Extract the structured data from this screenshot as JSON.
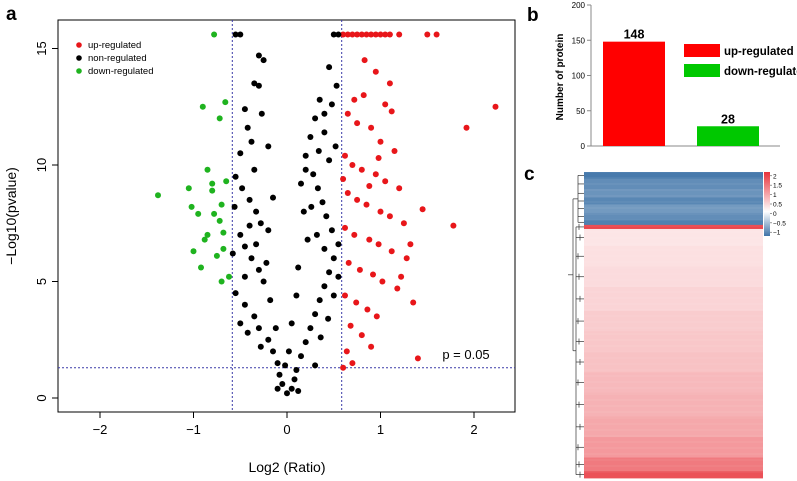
{
  "panels": {
    "a": {
      "letter": "a"
    },
    "b": {
      "letter": "b"
    },
    "c": {
      "letter": "c"
    }
  },
  "colors": {
    "up": "#e8161a",
    "non": "#000000",
    "down": "#1fb31f",
    "threshold_line": "#3b3ba8",
    "heat_high": "#e8323a",
    "heat_mid": "#ffffff",
    "heat_low": "#3f74a8"
  },
  "chart_data": [
    {
      "panel": "a",
      "type": "scatter",
      "xlabel": "Log2 (Ratio)",
      "ylabel": "−Log10(pvalue)",
      "xlim": [
        -2.4,
        2.4
      ],
      "ylim": [
        0,
        16
      ],
      "x_ticks": [
        -2,
        -1,
        0,
        1,
        2
      ],
      "y_ticks": [
        0,
        5,
        10,
        15
      ],
      "x_tick_labels": [
        "−2",
        "−1",
        "0",
        "1",
        "2"
      ],
      "y_tick_labels": [
        "0",
        "5",
        "10",
        "15"
      ],
      "legend": {
        "placement": "top-left",
        "entries": [
          {
            "label": "up-regulated",
            "color": "#e8161a"
          },
          {
            "label": "non-regulated",
            "color": "#000000"
          },
          {
            "label": "down-regulated",
            "color": "#1fb31f"
          }
        ]
      },
      "thresholds": {
        "x": [
          -0.585,
          0.585
        ],
        "y": 1.3
      },
      "annotation": "p = 0.05",
      "series": [
        {
          "name": "down-regulated",
          "color": "#1fb31f",
          "points": [
            [
              -1.38,
              8.7
            ],
            [
              -1.05,
              9.0
            ],
            [
              -1.02,
              8.2
            ],
            [
              -0.9,
              12.5
            ],
            [
              -0.85,
              9.8
            ],
            [
              -0.8,
              8.9
            ],
            [
              -0.78,
              7.9
            ],
            [
              -0.95,
              7.9
            ],
            [
              -0.72,
              7.6
            ],
            [
              -0.88,
              6.8
            ],
            [
              -0.75,
              6.1
            ],
            [
              -0.68,
              6.4
            ],
            [
              -0.92,
              5.6
            ],
            [
              -0.7,
              5.0
            ],
            [
              -0.65,
              9.3
            ],
            [
              -0.72,
              12.0
            ],
            [
              -0.78,
              15.6
            ],
            [
              -0.7,
              8.3
            ],
            [
              -0.85,
              7.0
            ],
            [
              -1.0,
              6.3
            ],
            [
              -0.62,
              5.2
            ],
            [
              -0.8,
              9.2
            ],
            [
              -0.68,
              7.1
            ],
            [
              -0.66,
              12.7
            ]
          ]
        },
        {
          "name": "up-regulated",
          "color": "#e8161a",
          "points": [
            [
              0.6,
              15.6
            ],
            [
              0.65,
              15.6
            ],
            [
              0.7,
              15.6
            ],
            [
              0.75,
              15.6
            ],
            [
              0.8,
              15.6
            ],
            [
              0.85,
              15.6
            ],
            [
              0.9,
              15.6
            ],
            [
              0.95,
              15.6
            ],
            [
              1.0,
              15.6
            ],
            [
              1.05,
              15.6
            ],
            [
              1.1,
              15.6
            ],
            [
              1.2,
              15.6
            ],
            [
              1.5,
              15.6
            ],
            [
              1.6,
              15.6
            ],
            [
              2.23,
              12.5
            ],
            [
              1.92,
              11.6
            ],
            [
              1.78,
              7.4
            ],
            [
              1.45,
              8.1
            ],
            [
              1.35,
              4.1
            ],
            [
              1.4,
              1.7
            ],
            [
              0.95,
              14.0
            ],
            [
              1.1,
              13.5
            ],
            [
              0.82,
              13.0
            ],
            [
              1.05,
              12.6
            ],
            [
              0.65,
              12.2
            ],
            [
              0.75,
              11.8
            ],
            [
              0.9,
              11.6
            ],
            [
              1.0,
              11.0
            ],
            [
              1.15,
              10.6
            ],
            [
              0.62,
              10.4
            ],
            [
              0.7,
              10.0
            ],
            [
              0.8,
              9.8
            ],
            [
              0.95,
              9.6
            ],
            [
              1.05,
              9.3
            ],
            [
              1.2,
              9.0
            ],
            [
              0.65,
              8.8
            ],
            [
              0.75,
              8.5
            ],
            [
              0.85,
              8.3
            ],
            [
              1.0,
              8.0
            ],
            [
              1.1,
              7.8
            ],
            [
              1.25,
              7.5
            ],
            [
              0.62,
              7.3
            ],
            [
              0.72,
              7.0
            ],
            [
              0.88,
              6.8
            ],
            [
              0.98,
              6.6
            ],
            [
              1.12,
              6.3
            ],
            [
              1.28,
              6.0
            ],
            [
              0.66,
              5.8
            ],
            [
              0.78,
              5.5
            ],
            [
              0.92,
              5.3
            ],
            [
              1.02,
              5.0
            ],
            [
              1.18,
              4.7
            ],
            [
              0.62,
              4.4
            ],
            [
              0.74,
              4.1
            ],
            [
              0.86,
              3.8
            ],
            [
              0.96,
              3.5
            ],
            [
              0.68,
              3.1
            ],
            [
              0.8,
              2.7
            ],
            [
              0.9,
              2.2
            ],
            [
              0.64,
              2.0
            ],
            [
              0.7,
              1.5
            ],
            [
              0.6,
              1.3
            ],
            [
              0.83,
              14.5
            ],
            [
              1.12,
              12.3
            ],
            [
              0.98,
              10.3
            ],
            [
              0.88,
              9.1
            ],
            [
              1.32,
              6.6
            ],
            [
              1.22,
              5.2
            ],
            [
              0.72,
              12.8
            ],
            [
              0.6,
              9.4
            ]
          ]
        },
        {
          "name": "non-regulated",
          "color": "#000000",
          "points": [
            [
              -0.55,
              15.6
            ],
            [
              -0.5,
              15.6
            ],
            [
              0.5,
              15.6
            ],
            [
              0.55,
              15.6
            ],
            [
              -0.3,
              14.7
            ],
            [
              -0.25,
              14.5
            ],
            [
              -0.35,
              13.5
            ],
            [
              -0.3,
              13.4
            ],
            [
              0.35,
              12.8
            ],
            [
              0.4,
              12.2
            ],
            [
              0.3,
              12.0
            ],
            [
              -0.45,
              12.4
            ],
            [
              -0.42,
              11.6
            ],
            [
              -0.38,
              11.0
            ],
            [
              -0.5,
              10.5
            ],
            [
              -0.55,
              9.5
            ],
            [
              -0.48,
              9.0
            ],
            [
              -0.4,
              8.5
            ],
            [
              -0.33,
              8.0
            ],
            [
              -0.28,
              7.5
            ],
            [
              -0.5,
              7.0
            ],
            [
              -0.45,
              6.5
            ],
            [
              -0.38,
              6.0
            ],
            [
              -0.3,
              5.5
            ],
            [
              -0.25,
              5.0
            ],
            [
              -0.55,
              4.5
            ],
            [
              -0.45,
              4.0
            ],
            [
              -0.35,
              3.5
            ],
            [
              -0.3,
              3.0
            ],
            [
              -0.2,
              2.5
            ],
            [
              -0.15,
              2.0
            ],
            [
              -0.1,
              1.5
            ],
            [
              -0.08,
              1.0
            ],
            [
              -0.05,
              0.6
            ],
            [
              0.0,
              0.2
            ],
            [
              0.05,
              0.4
            ],
            [
              0.08,
              0.8
            ],
            [
              0.1,
              1.2
            ],
            [
              0.15,
              1.8
            ],
            [
              0.2,
              2.4
            ],
            [
              0.25,
              3.0
            ],
            [
              0.3,
              3.6
            ],
            [
              0.35,
              4.2
            ],
            [
              0.4,
              4.8
            ],
            [
              0.45,
              5.4
            ],
            [
              0.5,
              6.0
            ],
            [
              0.55,
              6.6
            ],
            [
              0.48,
              7.2
            ],
            [
              0.42,
              7.8
            ],
            [
              0.38,
              8.4
            ],
            [
              0.33,
              9.0
            ],
            [
              0.28,
              9.6
            ],
            [
              0.45,
              10.2
            ],
            [
              0.52,
              10.8
            ],
            [
              0.25,
              11.2
            ],
            [
              0.2,
              10.4
            ],
            [
              0.15,
              9.2
            ],
            [
              0.18,
              8.0
            ],
            [
              0.22,
              6.8
            ],
            [
              0.12,
              5.6
            ],
            [
              0.1,
              4.4
            ],
            [
              0.05,
              3.2
            ],
            [
              0.02,
              2.0
            ],
            [
              -0.02,
              1.4
            ],
            [
              -0.12,
              3.0
            ],
            [
              -0.18,
              4.2
            ],
            [
              -0.22,
              5.8
            ],
            [
              -0.2,
              7.2
            ],
            [
              -0.15,
              8.6
            ],
            [
              -0.35,
              9.8
            ],
            [
              -0.4,
              7.4
            ],
            [
              -0.45,
              5.2
            ],
            [
              -0.5,
              3.2
            ],
            [
              -0.28,
              2.2
            ],
            [
              -0.1,
              0.4
            ],
            [
              0.12,
              0.3
            ],
            [
              0.3,
              1.4
            ],
            [
              0.36,
              2.6
            ],
            [
              0.44,
              3.4
            ],
            [
              0.5,
              4.4
            ],
            [
              0.55,
              5.2
            ],
            [
              0.4,
              6.4
            ],
            [
              0.32,
              7.0
            ],
            [
              0.26,
              8.2
            ],
            [
              0.2,
              9.8
            ],
            [
              0.34,
              10.6
            ],
            [
              0.4,
              11.4
            ],
            [
              0.48,
              12.6
            ],
            [
              0.53,
              13.4
            ],
            [
              0.45,
              14.2
            ],
            [
              -0.2,
              10.8
            ],
            [
              -0.27,
              12.2
            ],
            [
              -0.33,
              6.6
            ],
            [
              -0.42,
              2.8
            ],
            [
              -0.58,
              6.2
            ],
            [
              -0.56,
              8.2
            ]
          ]
        }
      ]
    },
    {
      "panel": "b",
      "type": "bar",
      "categories": [
        "up-regulated",
        "down-regulated"
      ],
      "values": [
        148,
        28
      ],
      "colors": [
        "#ff0000",
        "#00c800"
      ],
      "value_labels": [
        "148",
        "28"
      ],
      "ylabel": "Number of protein",
      "ylim": [
        0,
        200
      ],
      "y_ticks": [
        0,
        50,
        100,
        150,
        200
      ],
      "y_tick_labels": [
        "0",
        "50",
        "100",
        "150",
        "200"
      ],
      "legend": {
        "placement": "right",
        "entries": [
          {
            "label": "up-regulated",
            "color": "#ff0000"
          },
          {
            "label": "down-regulated",
            "color": "#00c800"
          }
        ]
      }
    },
    {
      "panel": "c",
      "type": "heatmap",
      "color_scale": {
        "ticks": [
          2,
          1.5,
          1,
          0.5,
          0,
          -0.5,
          -1
        ],
        "tick_labels": [
          "2",
          "1.5",
          "1",
          "0.5",
          "0",
          "−0.5",
          "−1"
        ],
        "range": [
          -1.2,
          2.2
        ]
      },
      "dendrogram": "left",
      "rows": [
        {
          "value": -1.05,
          "share": 0.02
        },
        {
          "value": -0.9,
          "share": 0.03
        },
        {
          "value": -0.85,
          "share": 0.025
        },
        {
          "value": -0.95,
          "share": 0.02
        },
        {
          "value": -0.8,
          "share": 0.025
        },
        {
          "value": -0.9,
          "share": 0.02
        },
        {
          "value": -1.0,
          "share": 0.015
        },
        {
          "value": 1.8,
          "share": 0.012
        },
        {
          "value": 0.25,
          "share": 0.05
        },
        {
          "value": 0.3,
          "share": 0.06
        },
        {
          "value": 0.35,
          "share": 0.06
        },
        {
          "value": 0.42,
          "share": 0.07
        },
        {
          "value": 0.5,
          "share": 0.06
        },
        {
          "value": 0.55,
          "share": 0.06
        },
        {
          "value": 0.6,
          "share": 0.06
        },
        {
          "value": 0.68,
          "share": 0.06
        },
        {
          "value": 0.75,
          "share": 0.07
        },
        {
          "value": 0.85,
          "share": 0.06
        },
        {
          "value": 1.0,
          "share": 0.06
        },
        {
          "value": 1.3,
          "share": 0.04
        },
        {
          "value": 1.7,
          "share": 0.02
        }
      ]
    }
  ]
}
